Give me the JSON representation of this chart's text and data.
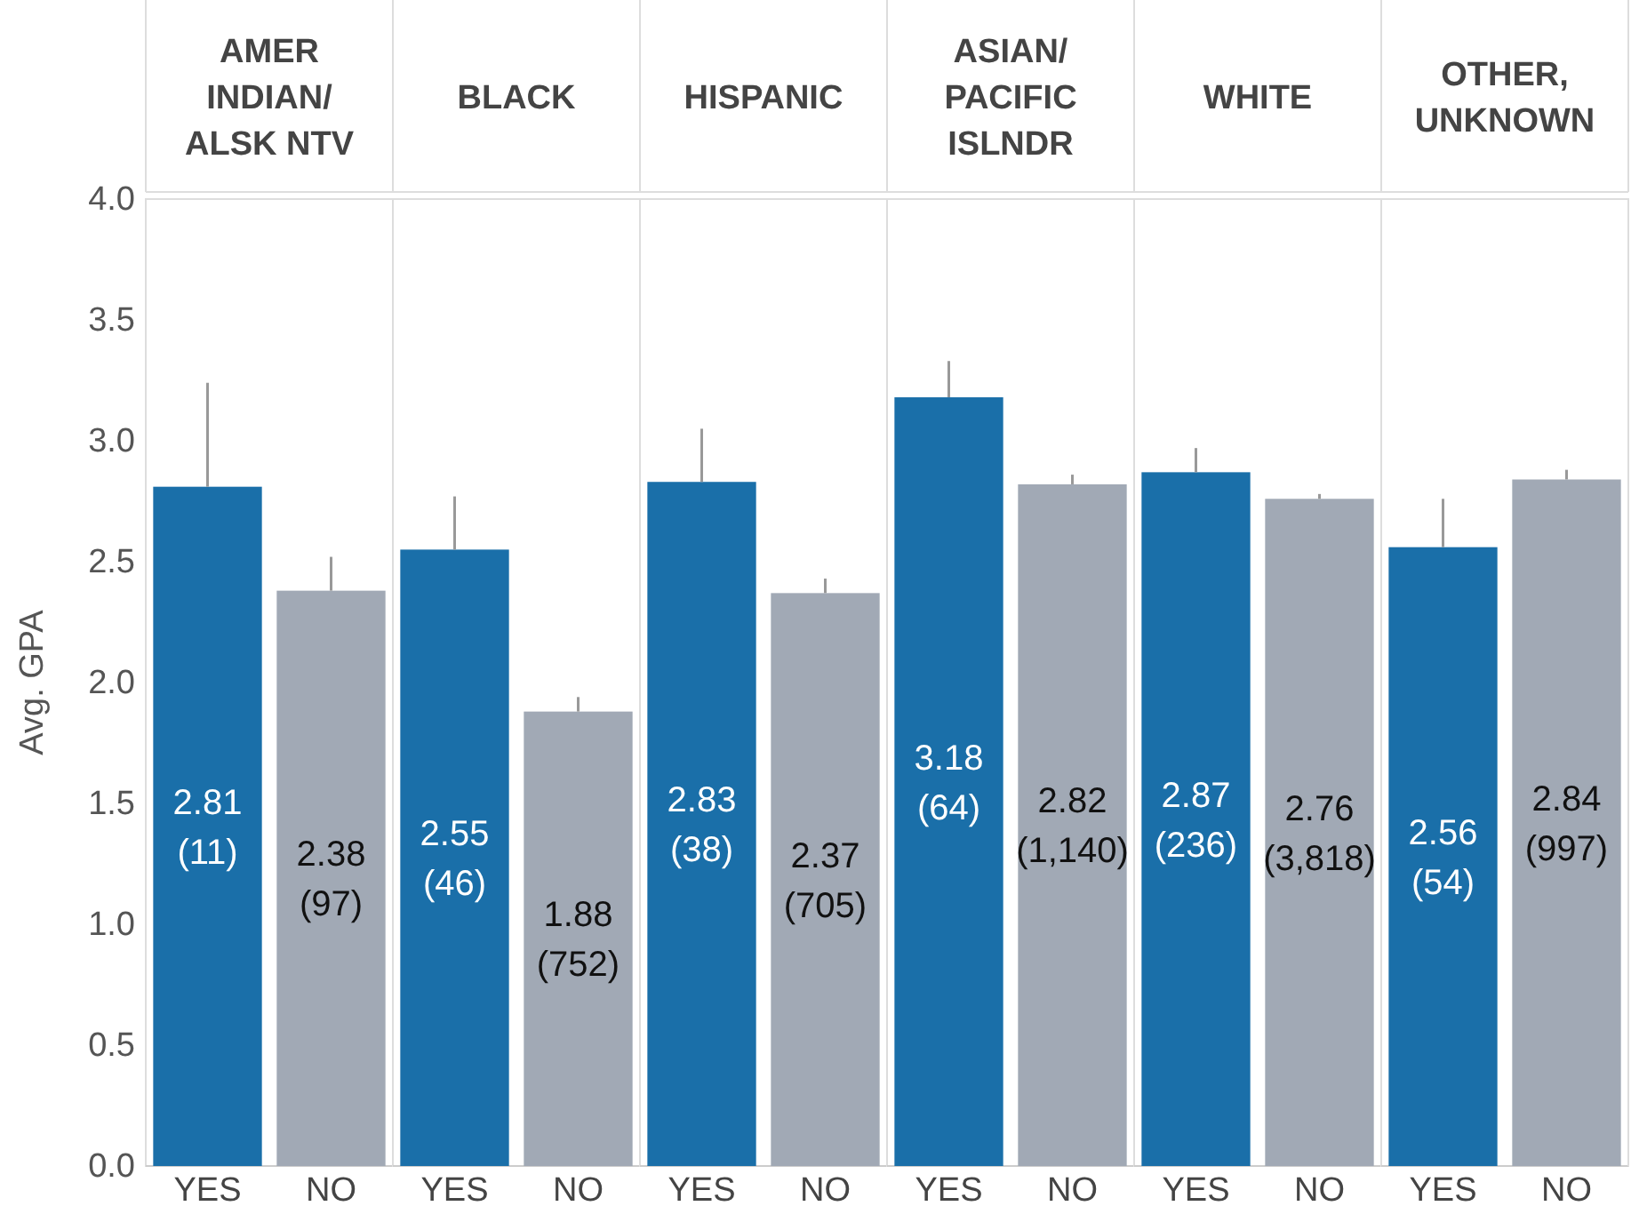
{
  "chart_data": [
    {
      "type": "bar",
      "title": "AMER\nINDIAN/\nALSK NTV",
      "ylabel": "Avg. GPA",
      "categories": [
        "YES",
        "NO"
      ],
      "colors": [
        "#1a6fa9",
        "#a1a9b5"
      ],
      "values": [
        2.81,
        2.38
      ],
      "errors": [
        [
          2.81,
          3.24
        ],
        [
          2.38,
          2.52
        ]
      ],
      "value_labels": [
        "2.81\n(11)",
        "2.38\n(97)"
      ],
      "ylim": [
        0,
        4
      ],
      "yticks": [
        {
          "value": 0,
          "label": "0.0"
        },
        0.5,
        {
          "value": 1,
          "label": "1.0"
        },
        1.5,
        {
          "value": 2,
          "label": "2.0"
        },
        2.5,
        {
          "value": 3,
          "label": "3.0"
        },
        3.5,
        {
          "value": 4,
          "label": "4.0"
        }
      ]
    },
    {
      "type": "bar",
      "title": "BLACK",
      "categories": [
        "YES",
        "NO"
      ],
      "colors": [
        "#1a6fa9",
        "#a1a9b5"
      ],
      "values": [
        2.55,
        1.88
      ],
      "errors": [
        [
          2.55,
          2.77
        ],
        [
          1.88,
          1.94
        ]
      ],
      "value_labels": [
        "2.55\n(46)",
        "1.88\n(752)"
      ],
      "ylim": [
        0,
        4
      ],
      "tick_labels": "x"
    },
    {
      "type": "bar",
      "title": "HISPANIC",
      "categories": [
        "YES",
        "NO"
      ],
      "colors": [
        "#1a6fa9",
        "#a1a9b5"
      ],
      "values": [
        2.83,
        2.37
      ],
      "errors": [
        [
          2.83,
          3.05
        ],
        [
          2.37,
          2.43
        ]
      ],
      "value_labels": [
        "2.83\n(38)",
        "2.37\n(705)"
      ],
      "ylim": [
        0,
        4
      ],
      "tick_labels": "x"
    },
    {
      "type": "bar",
      "title": "ASIAN/\nPACIFIC\nISLNDR",
      "categories": [
        "YES",
        "NO"
      ],
      "colors": [
        "#1a6fa9",
        "#a1a9b5"
      ],
      "values": [
        3.18,
        2.82
      ],
      "errors": [
        [
          3.18,
          3.33
        ],
        [
          2.82,
          2.86
        ]
      ],
      "value_labels": [
        "3.18\n(64)",
        "2.82\n(1,140)"
      ],
      "ylim": [
        0,
        4
      ],
      "tick_labels": "x"
    },
    {
      "type": "bar",
      "title": "WHITE",
      "categories": [
        "YES",
        "NO"
      ],
      "colors": [
        "#1a6fa9",
        "#a1a9b5"
      ],
      "values": [
        2.87,
        2.76
      ],
      "errors": [
        [
          2.87,
          2.97
        ],
        [
          2.76,
          2.78
        ]
      ],
      "value_labels": [
        "2.87\n(236)",
        "2.76\n(3,818)"
      ],
      "ylim": [
        0,
        4
      ],
      "tick_labels": "x"
    },
    {
      "type": "bar",
      "title": "OTHER,\nUNKNOWN",
      "categories": [
        "YES",
        "NO"
      ],
      "colors": [
        "#1a6fa9",
        "#a1a9b5"
      ],
      "values": [
        2.56,
        2.84
      ],
      "errors": [
        [
          2.56,
          2.76
        ],
        [
          2.84,
          2.88
        ]
      ],
      "value_labels": [
        "2.56\n(54)",
        "2.84\n(997)"
      ],
      "ylim": [
        0,
        4
      ],
      "tick_labels": "x"
    }
  ]
}
